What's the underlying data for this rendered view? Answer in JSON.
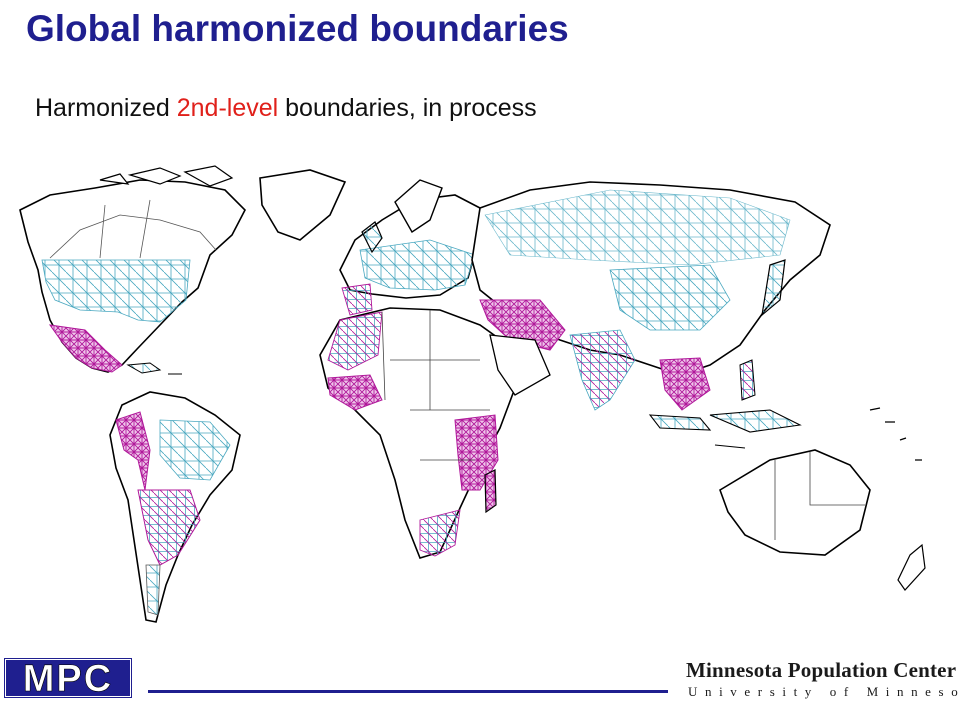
{
  "slide": {
    "title": "Global harmonized boundaries",
    "subtitle_before": "Harmonized ",
    "subtitle_highlight": "2nd-level",
    "subtitle_after": " boundaries, in process"
  },
  "map": {
    "colors": {
      "coastline": "#000000",
      "country_border": "#444444",
      "harmonized_boundary": "#4aa8c0",
      "dense_boundary": "#b0189a",
      "highlight_text": "#e0201a"
    }
  },
  "footer": {
    "logo_text": "MPC",
    "center_name": "Minnesota Population Center",
    "university_name": "University of Minnesota",
    "brand_color": "#1f1f8f"
  }
}
